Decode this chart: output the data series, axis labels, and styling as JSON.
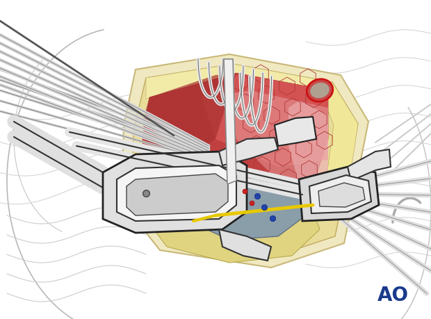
{
  "bg_color": "#ffffff",
  "ao_text": "AO",
  "ao_color": "#1a3a8c",
  "ao_fontsize": 20,
  "fig_width": 6.2,
  "fig_height": 4.59,
  "dpi": 100,
  "wound_cream": "#f0e8c0",
  "wound_cream2": "#ece0a8",
  "lung_red": "#c84444",
  "lung_pink": "#e8a0a0",
  "lung_dark": "#a03030",
  "spine_blue": "#7a9ab0",
  "bone_yellow": "#e8d888",
  "instrument_white": "#e8e8e8",
  "instrument_gray": "#cccccc",
  "line_dark": "#222222",
  "line_mid": "#555555",
  "line_light": "#999999",
  "yellow_rod": "#e8c800",
  "blue_dot": "#2244aa",
  "red_dot": "#cc2222"
}
